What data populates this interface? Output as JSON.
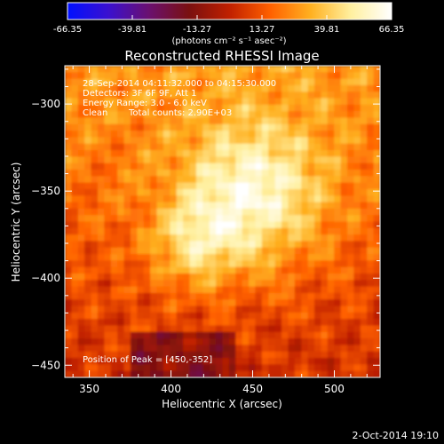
{
  "colorbar": {
    "min": -66.35,
    "max": 66.35,
    "tick_labels": [
      "-66.35",
      "-39.81",
      "-13.27",
      "13.27",
      "39.81",
      "66.35"
    ],
    "unit_label": "(photons cm⁻² s⁻¹ asec⁻²)",
    "colors": [
      "#0010ff",
      "#3a10d0",
      "#6a1070",
      "#7a1010",
      "#c02000",
      "#ff6000",
      "#ffb020",
      "#fff0a0",
      "#ffffff"
    ]
  },
  "chart_data": {
    "type": "heatmap",
    "title": "Reconstructed RHESSI Image",
    "xlabel": "Heliocentric X (arcsec)",
    "ylabel": "Heliocentric Y (arcsec)",
    "xlim": [
      335,
      528
    ],
    "ylim": [
      -457,
      -278
    ],
    "xticks": [
      350,
      400,
      450,
      500
    ],
    "yticks": [
      -300,
      -350,
      -400,
      -450
    ],
    "peak": [
      450,
      -352
    ],
    "annotations": [
      "28-Sep-2014 04:11:32.000 to 04:15:30.000",
      "Detectors: 3F 6F 9F, Att 1",
      "Energy Range: 3.0 - 6.0 keV",
      "Clean",
      "Total counts: 2.90E+03"
    ],
    "peak_label": "Position of Peak = [450,-352]"
  },
  "footer": {
    "date": "2-Oct-2014 19:10"
  }
}
